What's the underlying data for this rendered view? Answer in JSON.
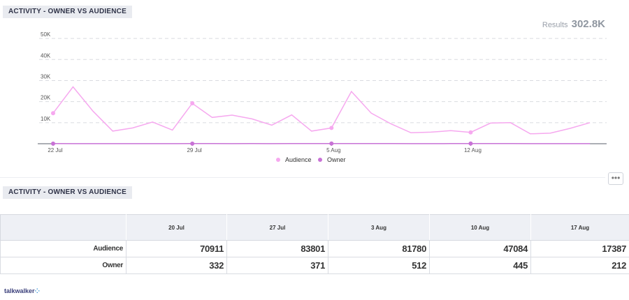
{
  "widget1": {
    "title": "ACTIVITY - OWNER VS AUDIENCE"
  },
  "results": {
    "label": "Results",
    "value": "302.8K"
  },
  "chart_data": {
    "type": "line",
    "title": "",
    "ylim": [
      0,
      55000
    ],
    "yticks": [
      {
        "value": 10000,
        "label": "10K"
      },
      {
        "value": 20000,
        "label": "20K"
      },
      {
        "value": 30000,
        "label": "30K"
      },
      {
        "value": 40000,
        "label": "40K"
      },
      {
        "value": 50000,
        "label": "50K"
      }
    ],
    "xticks": [
      {
        "day": 0,
        "label": "22 Jul"
      },
      {
        "day": 7,
        "label": "29 Jul"
      },
      {
        "day": 14,
        "label": "5 Aug"
      },
      {
        "day": 21,
        "label": "12 Aug"
      }
    ],
    "grid": true,
    "legend": "bottom-center",
    "series": [
      {
        "name": "Audience",
        "color": "#f6a8ef",
        "values": [
          14500,
          27000,
          15500,
          6000,
          7500,
          10300,
          6500,
          19200,
          12500,
          13600,
          11800,
          8800,
          13700,
          6000,
          7500,
          24800,
          14500,
          9400,
          5200,
          5500,
          6200,
          5400,
          9800,
          10000,
          4700,
          5000,
          7300,
          10000
        ],
        "markers": [
          0,
          7,
          14,
          21
        ]
      },
      {
        "name": "Owner",
        "color": "#c872d6",
        "values": [
          60,
          45,
          45,
          40,
          40,
          45,
          40,
          50,
          55,
          40,
          50,
          45,
          55,
          60,
          70,
          90,
          70,
          50,
          40,
          40,
          55,
          80,
          60,
          50,
          35,
          30,
          30,
          30
        ],
        "markers": [
          0,
          7,
          14,
          21
        ]
      }
    ]
  },
  "more_button": {
    "label": "•••"
  },
  "widget2": {
    "title": "ACTIVITY - OWNER VS AUDIENCE"
  },
  "table": {
    "columns": [
      "20 Jul",
      "27 Jul",
      "3 Aug",
      "10 Aug",
      "17 Aug"
    ],
    "rows": [
      {
        "label": "Audience",
        "values": [
          "70911",
          "83801",
          "81780",
          "47084",
          "17387"
        ]
      },
      {
        "label": "Owner",
        "values": [
          "332",
          "371",
          "512",
          "445",
          "212"
        ]
      }
    ]
  },
  "logo": {
    "text": "talkwalker"
  }
}
